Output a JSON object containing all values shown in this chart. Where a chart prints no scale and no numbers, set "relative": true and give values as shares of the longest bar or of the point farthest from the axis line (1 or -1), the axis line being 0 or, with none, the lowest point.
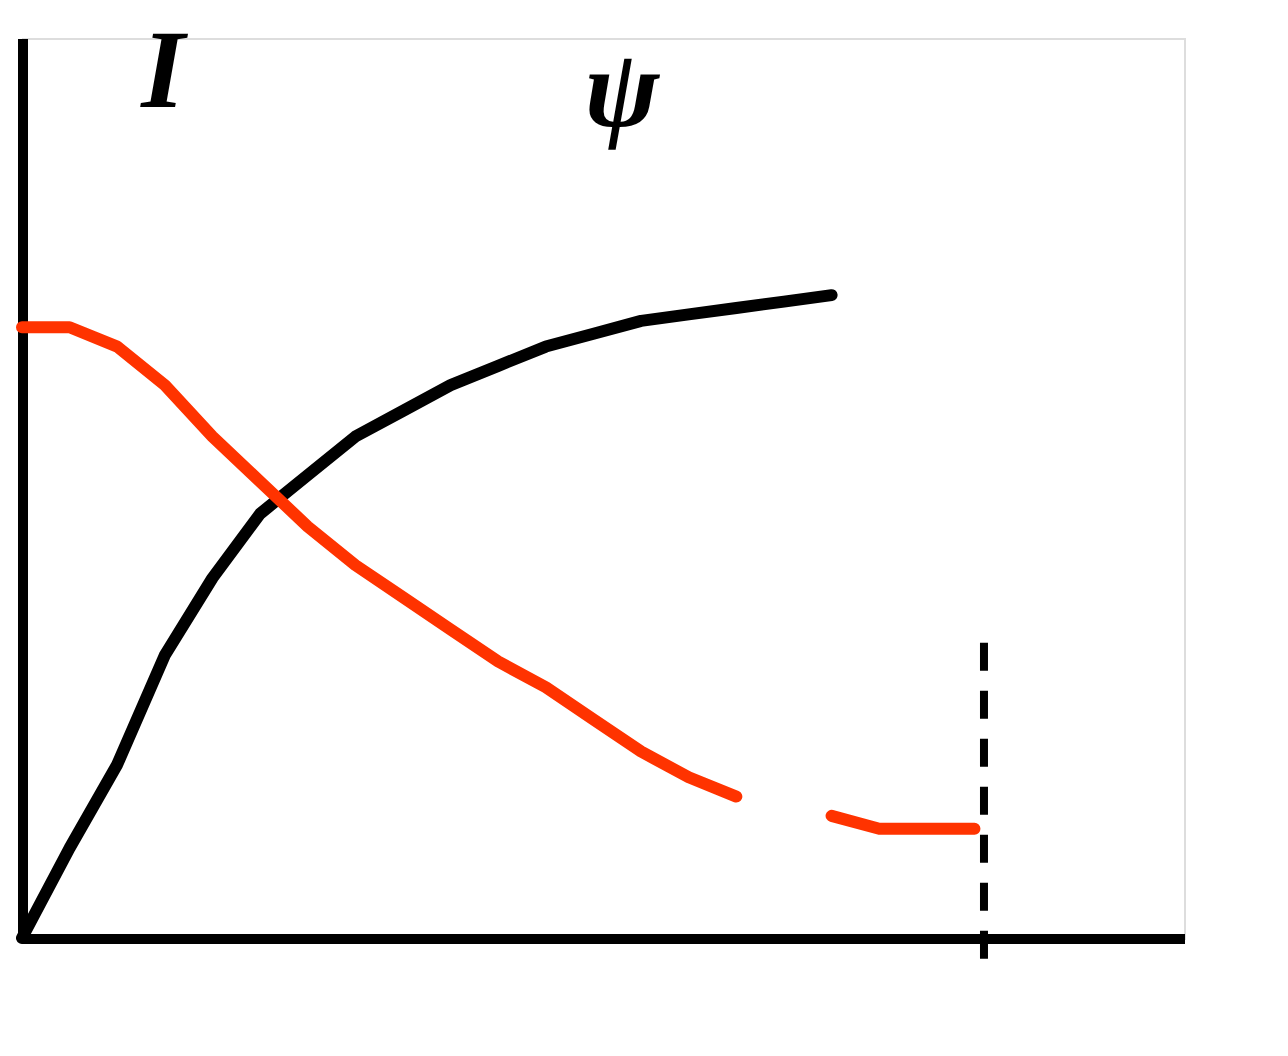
{
  "chart_data": {
    "type": "line",
    "relative": true,
    "ylabel": "I",
    "annotations": [
      "ψ"
    ],
    "line_style": "solid",
    "categories": [
      null,
      null,
      null,
      null,
      null,
      null,
      null,
      null,
      null,
      null,
      null,
      null,
      null,
      null,
      null,
      null,
      null,
      null,
      null,
      null,
      null
    ],
    "series": [
      {
        "color": "#000000",
        "values": [
          0,
          0.14,
          0.27,
          0.44,
          0.56,
          0.66,
          0.72,
          0.78,
          0.82,
          0.86,
          0.89,
          0.92,
          0.94,
          0.96,
          0.97,
          0.98,
          0.99,
          1,
          null,
          null,
          null
        ]
      },
      {
        "color": "#ff3300",
        "values": [
          0.95,
          0.95,
          0.92,
          0.86,
          0.78,
          0.71,
          0.64,
          0.58,
          0.53,
          0.48,
          0.43,
          0.39,
          0.34,
          0.29,
          0.25,
          0.22,
          null,
          0.19,
          0.17,
          0.17,
          0.17
        ]
      }
    ],
    "ref_lines": [
      {
        "axis": "x",
        "value": null,
        "color": "#000000",
        "line_style": "dashed"
      }
    ]
  }
}
